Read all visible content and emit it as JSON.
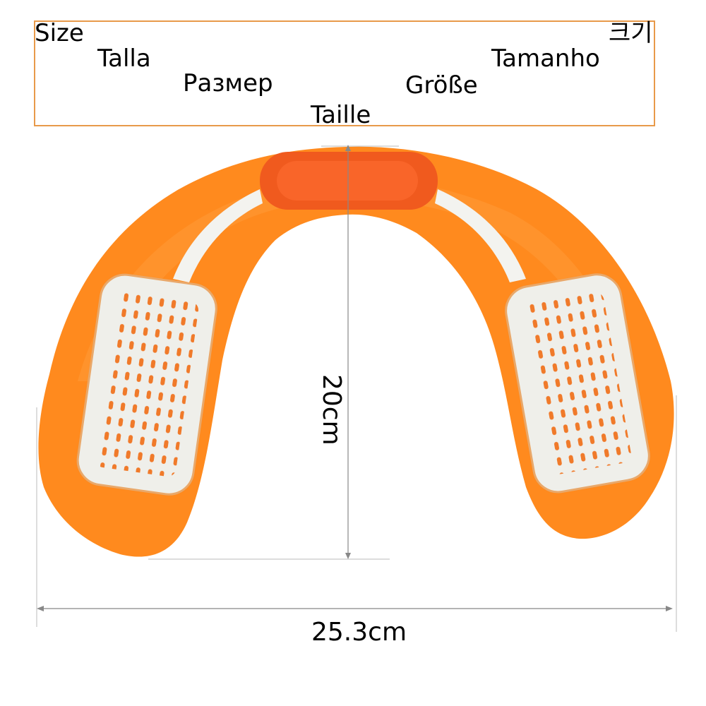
{
  "size_labels": {
    "english": "Size",
    "spanish": "Talla",
    "russian": "Размер",
    "french": "Taille",
    "german": "Größe",
    "portuguese": "Tamanho",
    "korean": "크기"
  },
  "dimensions": {
    "height": "20cm",
    "width": "25.3cm"
  },
  "colors": {
    "pad_orange": "#ff8a1e",
    "pad_dark_orange": "#f05a14",
    "gel_white": "#eeeeea",
    "box_border": "#e89a4a"
  }
}
